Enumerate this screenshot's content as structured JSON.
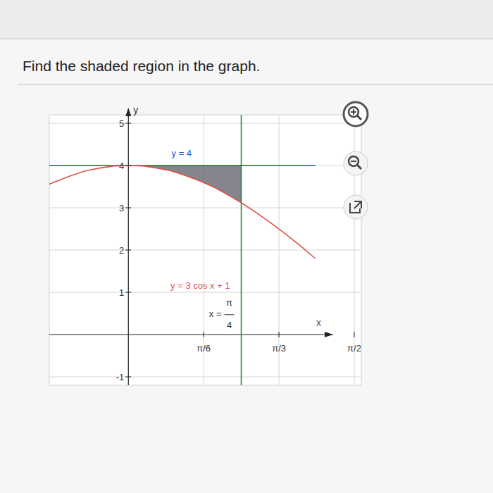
{
  "chart_data": {
    "type": "line",
    "title": "Find the shaded region in the graph.",
    "x_label": "x",
    "y_label": "y",
    "xlim": [
      -0.55,
      1.62
    ],
    "ylim": [
      -1.2,
      5.2
    ],
    "xticks": [
      {
        "value": 0.5236,
        "label": "π/6"
      },
      {
        "value": 1.0472,
        "label": "π/3"
      },
      {
        "value": 1.5708,
        "label": "π/2"
      }
    ],
    "yticks": [
      -1,
      1,
      2,
      3,
      4,
      5
    ],
    "grid": true,
    "series": [
      {
        "name": "y = 4",
        "color": "#2a4fd6",
        "x": [
          -0.55,
          1.3
        ],
        "values": [
          4,
          4
        ]
      },
      {
        "name": "y = 3 cos x + 1",
        "color": "#e0524a",
        "x": [
          -0.55,
          -0.4,
          -0.3,
          -0.2,
          -0.1,
          0,
          0.1,
          0.2,
          0.3,
          0.4,
          0.5,
          0.6,
          0.7,
          0.785,
          0.9,
          1.0,
          1.1,
          1.2,
          1.3
        ],
        "values": [
          3.56,
          3.76,
          3.87,
          3.94,
          3.99,
          4,
          3.99,
          3.94,
          3.87,
          3.76,
          3.63,
          3.48,
          3.29,
          3.12,
          2.86,
          2.62,
          2.36,
          2.09,
          1.8
        ]
      }
    ],
    "vertical_line": {
      "x": 0.785,
      "label": "x =",
      "numerator": "π",
      "denominator": "4"
    },
    "shaded": {
      "x": [
        0,
        0.1,
        0.2,
        0.3,
        0.4,
        0.5,
        0.6,
        0.7,
        0.785
      ],
      "upper": [
        4,
        4,
        4,
        4,
        4,
        4,
        4,
        4,
        4
      ],
      "lower": [
        4,
        3.99,
        3.94,
        3.87,
        3.76,
        3.63,
        3.48,
        3.29,
        3.12
      ]
    }
  }
}
